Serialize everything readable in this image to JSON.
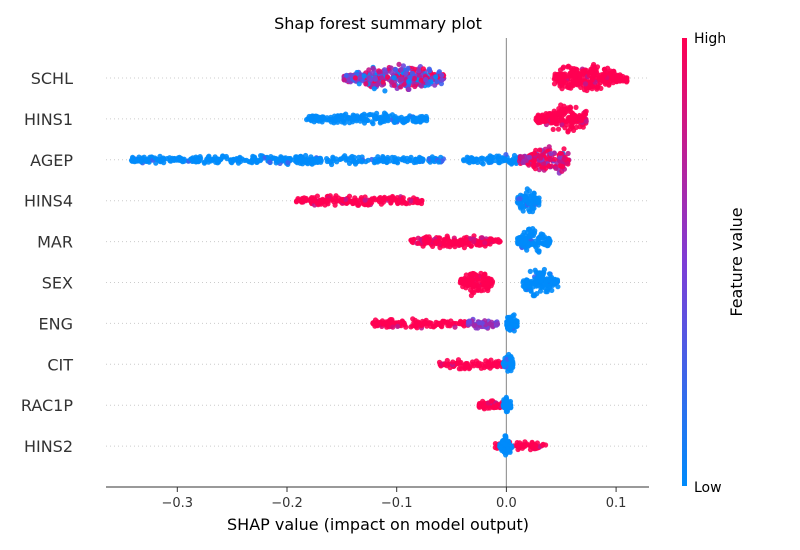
{
  "chart_data": {
    "type": "scatter",
    "subtype": "shap-beeswarm",
    "title": "Shap forest summary plot",
    "xlabel": "SHAP value (impact on model output)",
    "xlim": [
      -0.365,
      0.13
    ],
    "xticks": [
      -0.3,
      -0.2,
      -0.1,
      0.0,
      0.1
    ],
    "xtick_labels": [
      "−0.3",
      "−0.2",
      "−0.1",
      "0.0",
      "0.1"
    ],
    "colorbar": {
      "label": "Feature value",
      "high_label": "High",
      "low_label": "Low",
      "high_color": "#ff0052",
      "low_color": "#008bfb"
    },
    "grid": false,
    "features": [
      {
        "name": "SCHL",
        "clusters": [
          {
            "min": -0.148,
            "max": -0.057,
            "center": -0.098,
            "spread": 0.9,
            "color": "mixed"
          },
          {
            "min": 0.043,
            "max": 0.11,
            "center": 0.07,
            "spread": 1.0,
            "color": "high"
          }
        ]
      },
      {
        "name": "HINS1",
        "clusters": [
          {
            "min": -0.183,
            "max": -0.072,
            "center": -0.125,
            "spread": 0.25,
            "color": "low"
          },
          {
            "min": 0.027,
            "max": 0.073,
            "center": 0.055,
            "spread": 1.0,
            "color": "high"
          }
        ]
      },
      {
        "name": "AGEP",
        "clusters": [
          {
            "min": -0.343,
            "max": -0.057,
            "center": -0.2,
            "spread": 0.15,
            "color": "low"
          },
          {
            "min": -0.04,
            "max": 0.012,
            "center": -0.005,
            "spread": 0.2,
            "color": "low"
          },
          {
            "min": 0.012,
            "max": 0.057,
            "center": 0.04,
            "spread": 0.95,
            "color": "mixed-high"
          }
        ]
      },
      {
        "name": "HINS4",
        "clusters": [
          {
            "min": -0.192,
            "max": -0.077,
            "center": -0.135,
            "spread": 0.25,
            "color": "high"
          },
          {
            "min": 0.01,
            "max": 0.03,
            "center": 0.02,
            "spread": 0.85,
            "color": "low"
          }
        ]
      },
      {
        "name": "MAR",
        "clusters": [
          {
            "min": -0.088,
            "max": -0.005,
            "center": -0.05,
            "spread": 0.35,
            "color": "high"
          },
          {
            "min": 0.01,
            "max": 0.04,
            "center": 0.025,
            "spread": 0.85,
            "color": "low"
          }
        ]
      },
      {
        "name": "SEX",
        "clusters": [
          {
            "min": -0.042,
            "max": -0.012,
            "center": -0.027,
            "spread": 0.9,
            "color": "high"
          },
          {
            "min": 0.015,
            "max": 0.047,
            "center": 0.03,
            "spread": 0.95,
            "color": "low"
          }
        ]
      },
      {
        "name": "ENG",
        "clusters": [
          {
            "min": -0.122,
            "max": -0.035,
            "center": -0.08,
            "spread": 0.2,
            "color": "high"
          },
          {
            "min": -0.035,
            "max": -0.008,
            "center": -0.02,
            "spread": 0.25,
            "color": "purple"
          },
          {
            "min": 0.0,
            "max": 0.01,
            "center": 0.005,
            "spread": 0.6,
            "color": "low"
          }
        ]
      },
      {
        "name": "CIT",
        "clusters": [
          {
            "min": -0.061,
            "max": -0.003,
            "center": -0.03,
            "spread": 0.2,
            "color": "high"
          },
          {
            "min": -0.003,
            "max": 0.006,
            "center": 0.002,
            "spread": 0.65,
            "color": "low"
          }
        ]
      },
      {
        "name": "RAC1P",
        "clusters": [
          {
            "min": -0.025,
            "max": -0.003,
            "center": -0.015,
            "spread": 0.15,
            "color": "high"
          },
          {
            "min": -0.003,
            "max": 0.004,
            "center": 0.0,
            "spread": 0.5,
            "color": "low"
          }
        ]
      },
      {
        "name": "HINS2",
        "clusters": [
          {
            "min": -0.012,
            "max": 0.036,
            "center": 0.015,
            "spread": 0.2,
            "color": "high"
          },
          {
            "min": -0.006,
            "max": 0.005,
            "center": 0.0,
            "spread": 0.75,
            "color": "low"
          }
        ]
      }
    ]
  }
}
